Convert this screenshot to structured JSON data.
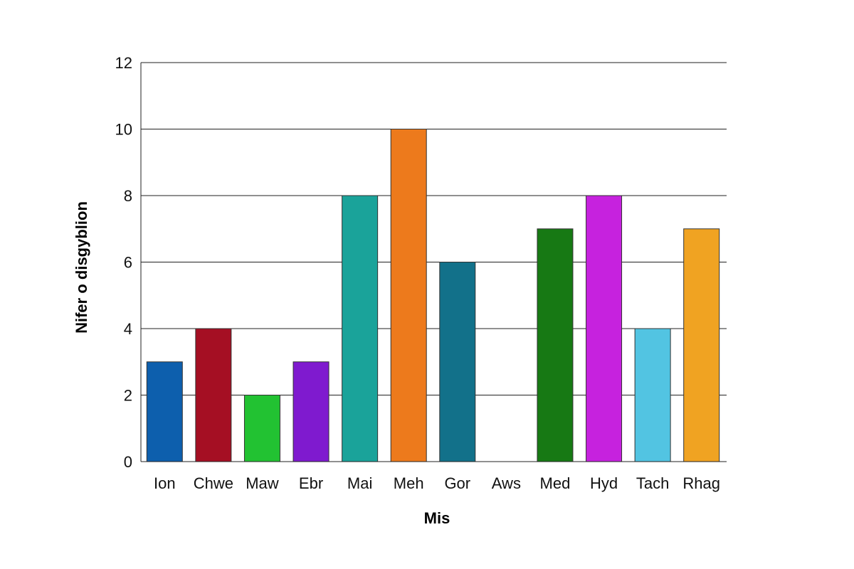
{
  "chart_data": {
    "type": "bar",
    "title": "",
    "xlabel": "Mis",
    "ylabel": "Nifer o disgyblion",
    "categories": [
      "Ion",
      "Chwe",
      "Maw",
      "Ebr",
      "Mai",
      "Meh",
      "Gor",
      "Aws",
      "Med",
      "Hyd",
      "Tach",
      "Rhag"
    ],
    "values": [
      3,
      4,
      2,
      3,
      8,
      10,
      6,
      0,
      7,
      8,
      4,
      7
    ],
    "colors": [
      "#0d5fad",
      "#a50f23",
      "#22c232",
      "#7f1acf",
      "#1aa39a",
      "#ed7a1c",
      "#12718a",
      "#ffffff",
      "#177914",
      "#c622de",
      "#52c4e2",
      "#f0a322"
    ],
    "ylim": [
      0,
      12
    ],
    "yticks": [
      0,
      2,
      4,
      6,
      8,
      10,
      12
    ],
    "grid": true,
    "legend": "none"
  }
}
